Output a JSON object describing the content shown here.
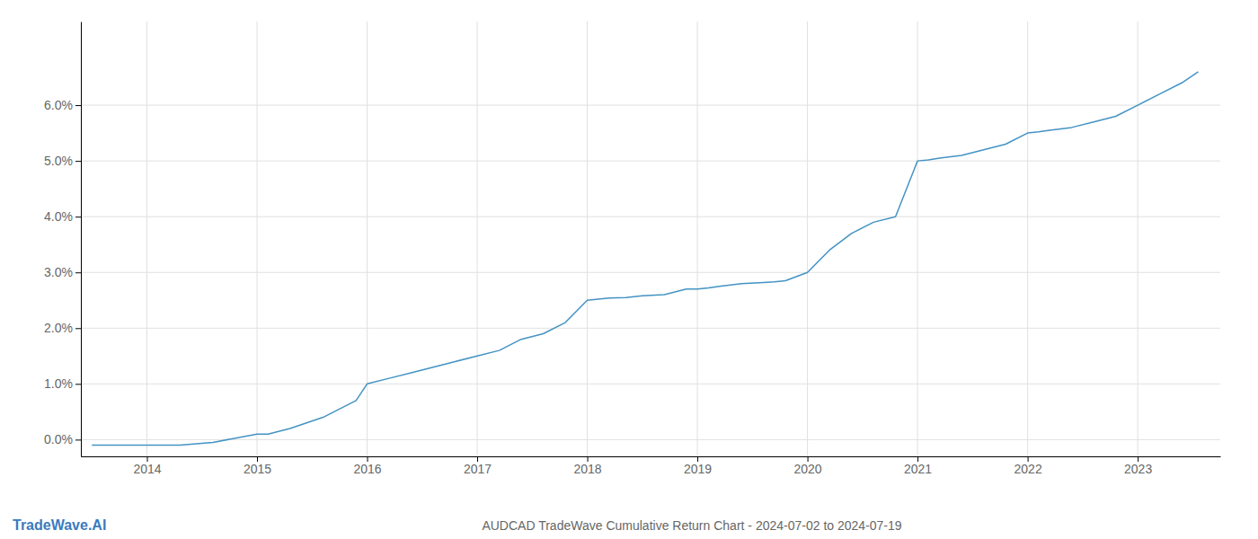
{
  "chart_data": {
    "type": "line",
    "title": "AUDCAD TradeWave Cumulative Return Chart - 2024-07-02 to 2024-07-19",
    "annotations": [
      "TradeWave.AI"
    ],
    "color": "#4393c3",
    "grid": true,
    "x": [
      2013.5,
      2014.0,
      2014.3,
      2014.6,
      2015.0,
      2015.1,
      2015.3,
      2015.6,
      2015.9,
      2016.0,
      2016.2,
      2016.4,
      2016.6,
      2016.8,
      2017.0,
      2017.2,
      2017.4,
      2017.6,
      2017.8,
      2018.0,
      2018.1,
      2018.2,
      2018.35,
      2018.5,
      2018.7,
      2018.9,
      2019.0,
      2019.1,
      2019.2,
      2019.4,
      2019.6,
      2019.7,
      2019.8,
      2020.0,
      2020.2,
      2020.4,
      2020.6,
      2020.8,
      2021.0,
      2021.1,
      2021.2,
      2021.4,
      2021.6,
      2021.8,
      2022.0,
      2022.1,
      2022.2,
      2022.4,
      2022.6,
      2022.8,
      2023.0,
      2023.2,
      2023.4,
      2023.55
    ],
    "values": [
      -0.001,
      -0.001,
      -0.001,
      -0.0005,
      0.001,
      0.001,
      0.002,
      0.004,
      0.007,
      0.01,
      0.011,
      0.012,
      0.013,
      0.014,
      0.015,
      0.016,
      0.018,
      0.019,
      0.021,
      0.025,
      0.0252,
      0.0254,
      0.0255,
      0.0258,
      0.026,
      0.027,
      0.027,
      0.0272,
      0.0275,
      0.028,
      0.0282,
      0.0283,
      0.0285,
      0.03,
      0.034,
      0.037,
      0.039,
      0.04,
      0.05,
      0.0502,
      0.0505,
      0.051,
      0.052,
      0.053,
      0.055,
      0.0552,
      0.0555,
      0.056,
      0.057,
      0.058,
      0.06,
      0.062,
      0.064,
      0.066
    ],
    "xlim": [
      2013.4,
      2023.75
    ],
    "xticks": [
      2014,
      2015,
      2016,
      2017,
      2018,
      2019,
      2020,
      2021,
      2022,
      2023
    ],
    "ylim": [
      -0.003,
      0.075
    ],
    "yticks": [
      {
        "value": 0.0,
        "label": "0.0%"
      },
      {
        "value": 0.01,
        "label": "1.0%"
      },
      {
        "value": 0.02,
        "label": "2.0%"
      },
      {
        "value": 0.03,
        "label": "3.0%"
      },
      {
        "value": 0.04,
        "label": "4.0%"
      },
      {
        "value": 0.05,
        "label": "5.0%"
      },
      {
        "value": 0.06,
        "label": "6.0%"
      }
    ]
  }
}
